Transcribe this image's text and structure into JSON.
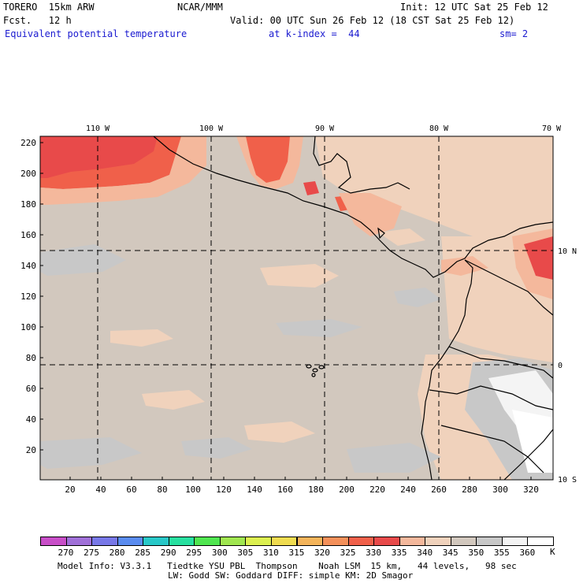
{
  "header": {
    "model": "TORERO  15km ARW",
    "org": "NCAR/MMM",
    "init": "Init: 12 UTC Sat 25 Feb 12",
    "fcst": "Fcst.   12 h",
    "valid": "Valid: 00 UTC Sun 26 Feb 12 (18 CST Sat 25 Feb 12)",
    "field": "Equivalent potential temperature",
    "level": "at k-index =  44",
    "smooth": "sm= 2"
  },
  "axes": {
    "lon_labels": [
      "110 W",
      "100 W",
      "90 W",
      "80 W",
      "70 W"
    ],
    "lat_labels": [
      "10 N",
      "0",
      "10 S"
    ],
    "y_ticks": [
      "220",
      "200",
      "180",
      "160",
      "140",
      "120",
      "100",
      "80",
      "60",
      "40",
      "20"
    ],
    "x_ticks": [
      "20",
      "40",
      "60",
      "80",
      "100",
      "120",
      "140",
      "160",
      "180",
      "200",
      "220",
      "240",
      "260",
      "280",
      "300",
      "320"
    ]
  },
  "colorbar": {
    "unit": "K",
    "labels": [
      "270",
      "275",
      "280",
      "285",
      "290",
      "295",
      "300",
      "305",
      "310",
      "315",
      "320",
      "325",
      "330",
      "335",
      "340",
      "345",
      "350",
      "355",
      "360"
    ],
    "colors": [
      "#c84ec8",
      "#a070d8",
      "#7878e8",
      "#5a8cf0",
      "#28c8c8",
      "#28e0a0",
      "#50e650",
      "#a0e650",
      "#dcf050",
      "#f0dc50",
      "#f4b45a",
      "#f4905a",
      "#f0604a",
      "#e84a4a",
      "#f4b89c",
      "#f0d2bc",
      "#d2c8be",
      "#c8c8c8",
      "#f4f4f4",
      "#ffffff"
    ]
  },
  "footer": {
    "line1": "Model Info: V3.3.1   Tiedtke YSU PBL  Thompson    Noah LSM  15 km,   44 levels,   98 sec",
    "line2": "LW: Godd SW: Goddard DIFF: simple KM: 2D Smagor"
  }
}
